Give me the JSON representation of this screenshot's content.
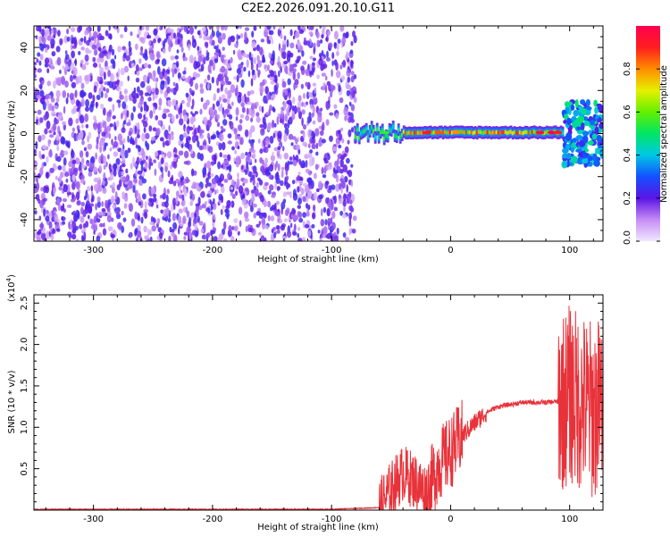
{
  "title": "C2E2.2026.091.20.10.G11",
  "chart_data": [
    {
      "type": "heatmap",
      "xlabel": "Height of straight line (km)",
      "ylabel": "Frequency (Hz)",
      "xlim": [
        -350,
        128
      ],
      "ylim": [
        -50,
        50
      ],
      "xticks": [
        -300,
        -200,
        -100,
        0,
        100
      ],
      "yticks": [
        -40,
        -20,
        0,
        20,
        40
      ],
      "colorbar": {
        "label": "Normalized spectral amplitude",
        "range": [
          0,
          1
        ],
        "ticks": [
          "0.0",
          "0.2",
          "0.4",
          "0.6",
          "0.8"
        ],
        "colormap": "violet-blue-cyan-green-yellow-red"
      },
      "regions": [
        {
          "x_range": [
            -350,
            -80
          ],
          "description": "noise",
          "amplitude": [
            0.05,
            0.25
          ],
          "freq_range": [
            -50,
            50
          ]
        },
        {
          "x_range": [
            -80,
            95
          ],
          "description": "signal band",
          "center_freq": 0.5,
          "amplitude": [
            0.4,
            1.0
          ]
        },
        {
          "x_range": [
            95,
            128
          ],
          "description": "noisy signal",
          "center_freq": 0,
          "amplitude": [
            0.2,
            0.5
          ]
        }
      ]
    },
    {
      "type": "line",
      "xlabel": "Height of straight line (km)",
      "ylabel": "SNR (10 * v/v)",
      "y_multiplier": "(x10",
      "y_multiplier_exp": "4",
      "xlim": [
        -350,
        128
      ],
      "ylim": [
        0,
        2.6
      ],
      "xticks": [
        -300,
        -200,
        -100,
        0,
        100
      ],
      "yticks": [
        "0.5",
        "1.0",
        "1.5",
        "2.0",
        "2.5"
      ],
      "series": [
        {
          "color": "#e8323a",
          "x": [
            -350,
            -100,
            -60,
            -50,
            -40,
            -30,
            -20,
            -10,
            0,
            10,
            20,
            30,
            40,
            60,
            80,
            95,
            100,
            110,
            120,
            128
          ],
          "y": [
            0.01,
            0.01,
            0.03,
            0.25,
            0.45,
            0.35,
            0.2,
            0.55,
            0.7,
            0.9,
            1.05,
            1.18,
            1.25,
            1.3,
            1.3,
            1.32,
            1.4,
            1.3,
            1.2,
            1.3
          ]
        }
      ]
    }
  ]
}
